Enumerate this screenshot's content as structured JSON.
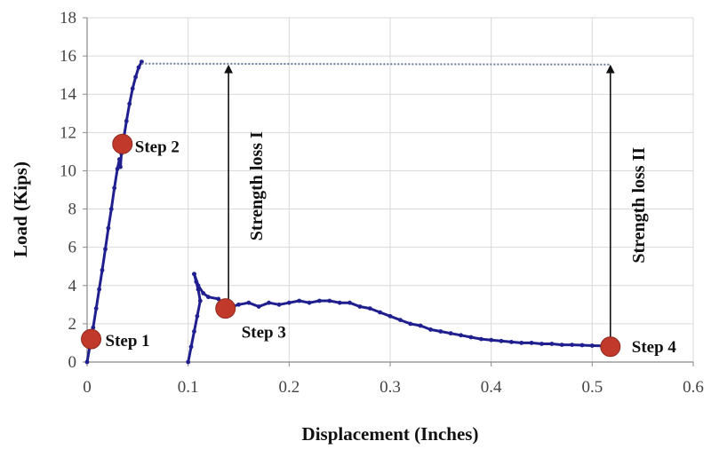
{
  "chart_data": {
    "type": "scatter",
    "title": "",
    "xlabel": "Displacement (Inches)",
    "ylabel": "Load (Kips)",
    "xlim": [
      0,
      0.6
    ],
    "ylim": [
      0,
      18
    ],
    "x_ticks": [
      "0",
      "0.1",
      "0.2",
      "0.3",
      "0.4",
      "0.5",
      "0.6"
    ],
    "y_ticks": [
      "0",
      "2",
      "4",
      "6",
      "8",
      "10",
      "12",
      "14",
      "16",
      "18"
    ],
    "grid": true,
    "series": [
      {
        "color": "#1f1f8f",
        "points": [
          [
            0.0,
            0.0
          ],
          [
            0.003,
            0.9
          ],
          [
            0.006,
            1.8
          ],
          [
            0.009,
            2.8
          ],
          [
            0.012,
            3.8
          ],
          [
            0.015,
            4.8
          ],
          [
            0.018,
            5.9
          ],
          [
            0.021,
            7.0
          ],
          [
            0.024,
            8.0
          ],
          [
            0.027,
            9.1
          ],
          [
            0.03,
            10.1
          ],
          [
            0.032,
            10.6
          ],
          [
            0.033,
            10.2
          ],
          [
            0.034,
            10.9
          ],
          [
            0.036,
            11.6
          ],
          [
            0.039,
            12.6
          ],
          [
            0.042,
            13.5
          ],
          [
            0.045,
            14.3
          ],
          [
            0.048,
            14.9
          ],
          [
            0.051,
            15.4
          ],
          [
            0.054,
            15.7
          ]
        ]
      },
      {
        "color": "#1f1f8f",
        "points": [
          [
            0.1,
            0.0
          ],
          [
            0.103,
            0.8
          ],
          [
            0.106,
            1.6
          ],
          [
            0.109,
            2.4
          ],
          [
            0.112,
            3.2
          ],
          [
            0.11,
            3.8
          ],
          [
            0.108,
            4.2
          ],
          [
            0.106,
            4.6
          ]
        ]
      },
      {
        "color": "#1f1f8f",
        "points": [
          [
            0.106,
            4.6
          ],
          [
            0.11,
            4.0
          ],
          [
            0.115,
            3.6
          ],
          [
            0.12,
            3.4
          ],
          [
            0.13,
            3.3
          ],
          [
            0.137,
            2.8
          ],
          [
            0.15,
            3.0
          ],
          [
            0.16,
            3.1
          ],
          [
            0.17,
            2.9
          ],
          [
            0.18,
            3.1
          ],
          [
            0.19,
            3.0
          ],
          [
            0.2,
            3.1
          ],
          [
            0.21,
            3.2
          ],
          [
            0.22,
            3.1
          ],
          [
            0.23,
            3.2
          ],
          [
            0.24,
            3.2
          ],
          [
            0.25,
            3.1
          ],
          [
            0.26,
            3.1
          ],
          [
            0.27,
            2.9
          ],
          [
            0.28,
            2.8
          ],
          [
            0.29,
            2.6
          ],
          [
            0.3,
            2.4
          ],
          [
            0.31,
            2.2
          ],
          [
            0.32,
            2.0
          ],
          [
            0.33,
            1.9
          ],
          [
            0.34,
            1.7
          ],
          [
            0.35,
            1.6
          ],
          [
            0.36,
            1.5
          ],
          [
            0.37,
            1.4
          ],
          [
            0.38,
            1.3
          ],
          [
            0.39,
            1.2
          ],
          [
            0.4,
            1.15
          ],
          [
            0.41,
            1.1
          ],
          [
            0.42,
            1.05
          ],
          [
            0.43,
            1.0
          ],
          [
            0.44,
            1.0
          ],
          [
            0.45,
            0.95
          ],
          [
            0.46,
            0.95
          ],
          [
            0.47,
            0.9
          ],
          [
            0.48,
            0.9
          ],
          [
            0.49,
            0.88
          ],
          [
            0.5,
            0.86
          ],
          [
            0.51,
            0.85
          ],
          [
            0.52,
            0.84
          ]
        ]
      }
    ],
    "steps": [
      {
        "label": "Step 1",
        "x": 0.004,
        "y": 1.2
      },
      {
        "label": "Step 2",
        "x": 0.035,
        "y": 11.4
      },
      {
        "label": "Step 3",
        "x": 0.137,
        "y": 2.8
      },
      {
        "label": "Step 4",
        "x": 0.518,
        "y": 0.8
      }
    ],
    "reference_line": {
      "x_start": 0.054,
      "x_end": 0.518,
      "y": 15.6
    },
    "annotations": [
      {
        "label": "Strength loss I",
        "x": 0.14,
        "y_from": 2.8,
        "y_to": 15.6
      },
      {
        "label": "Strength loss II",
        "x": 0.518,
        "y_from": 0.8,
        "y_to": 15.6
      }
    ],
    "colors": {
      "series": "#1f1f8f",
      "step_marker": "#c0392b",
      "grid": "#d9d9d9",
      "reference": "#6b7a9c"
    }
  }
}
